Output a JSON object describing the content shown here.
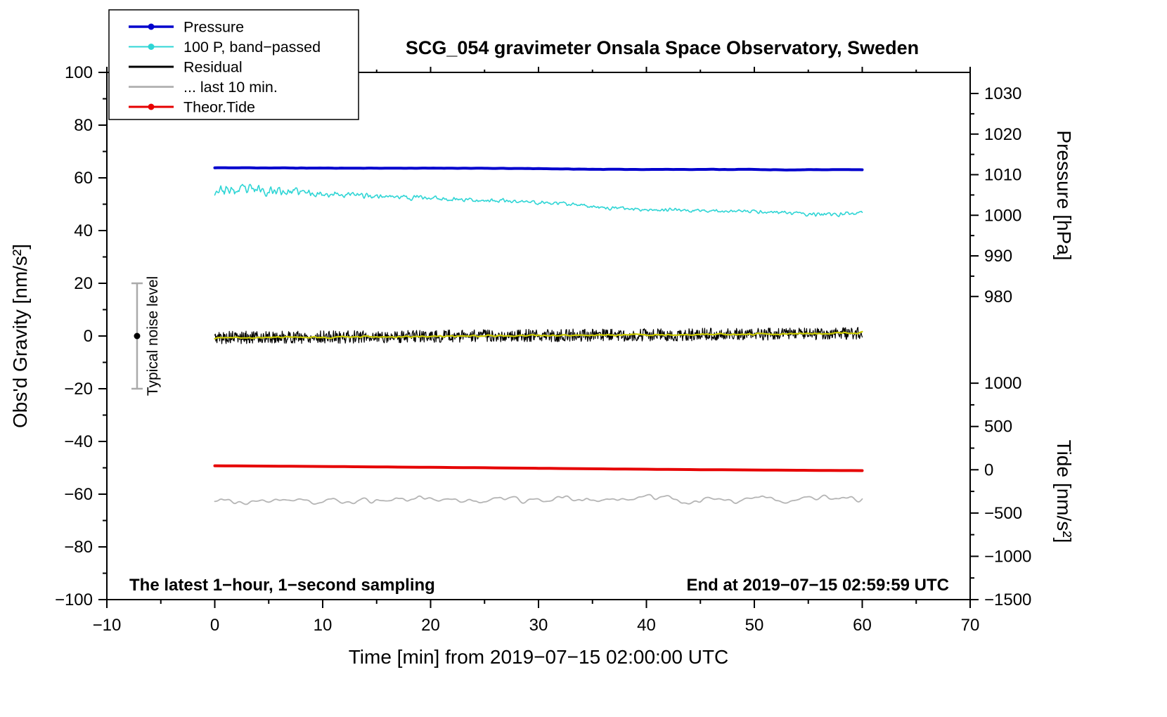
{
  "page": {
    "background": "#ffffff"
  },
  "chart_data": {
    "type": "line",
    "title": "SCG_054 gravimeter Onsala Space Observatory, Sweden",
    "xlabel": "Time [min] from 2019−07−15 02:00:00 UTC",
    "annotations": {
      "bottom_left": "The latest 1−hour, 1−second sampling",
      "bottom_right": "End at 2019−07−15 02:59:59 UTC",
      "noise_level": {
        "label": "Typical noise level",
        "x": -7.2,
        "center": 0,
        "half_range": 20
      }
    },
    "x_axis": {
      "min": -10,
      "max": 70,
      "major_step": 10,
      "minor_step": 5
    },
    "y_left": {
      "label": "Obs'd Gravity [nm/s²]",
      "min": -100,
      "max": 100,
      "major_step": 20,
      "minor_step": 10
    },
    "y_pressure": {
      "label": "Pressure [hPa]",
      "major_ticks": [
        1030,
        1020,
        1010,
        1000,
        990,
        980
      ],
      "minor_ticks": [
        1025,
        1015,
        1005,
        995,
        985
      ],
      "map": {
        "v1": 980,
        "g1": 15.0,
        "v2": 1030,
        "g2": 92.0
      }
    },
    "y_tide": {
      "label": "Tide [nm/s²]",
      "major_ticks": [
        1000,
        500,
        0,
        -500,
        -1000,
        -1500
      ],
      "minor_ticks": [
        750,
        250,
        -250,
        -750,
        -1250
      ],
      "map": {
        "v1": -1500,
        "g1": -100,
        "v2": 1000,
        "g2": -17.9
      }
    },
    "legend": [
      {
        "label": "Pressure",
        "color": "#0000cd",
        "width": 3.5,
        "marker": true
      },
      {
        "label": "100 P, band−passed",
        "color": "#2fd5d5",
        "width": 2,
        "marker": true
      },
      {
        "label": "Residual",
        "color": "#000000",
        "width": 3,
        "marker": false
      },
      {
        "label": "... last 10 min.",
        "color": "#b5b5b5",
        "width": 3,
        "marker": false
      },
      {
        "label": "Theor.Tide",
        "color": "#e60000",
        "width": 3,
        "marker": true
      }
    ],
    "series": [
      {
        "name": "last10min",
        "legend_label": "... last 10 min.",
        "axis": "gravity",
        "color": "#b5b5b5",
        "width": 1.8,
        "seed": 77,
        "step": 0.12,
        "smooth_passes": 5,
        "noise_amp": 3.0,
        "x": [
          0,
          60
        ],
        "y": [
          -62.3,
          -61.9
        ]
      },
      {
        "name": "pressure",
        "legend_label": "Pressure",
        "axis": "pressure",
        "color": "#0000cd",
        "width": 4,
        "seed": 11,
        "step": 0.25,
        "smooth_passes": 1,
        "noise_amp": 0.06,
        "x": [
          0,
          3,
          6,
          10,
          14,
          18,
          22,
          26,
          30,
          34,
          38,
          42,
          46,
          50,
          53,
          56,
          60
        ],
        "y": [
          1011.7,
          1011.7,
          1011.65,
          1011.62,
          1011.6,
          1011.6,
          1011.6,
          1011.55,
          1011.5,
          1011.35,
          1011.3,
          1011.3,
          1011.3,
          1011.3,
          1011.15,
          1011.25,
          1011.25
        ]
      },
      {
        "name": "bandpassed",
        "legend_label": "100 P, band−passed",
        "axis": "gravity",
        "color": "#2fd5d5",
        "width": 1.6,
        "seed": 23,
        "step": 0.08,
        "smooth_passes": 1,
        "noise_amp": [
          2.5,
          3.2,
          3.0,
          2.6,
          2.2,
          1.8,
          1.6,
          1.5,
          1.4,
          1.3,
          1.2,
          1.2,
          1.1,
          1.0,
          1.0,
          0.9,
          0.9,
          0.9,
          0.9,
          0.9,
          1.0,
          1.1,
          1.0
        ],
        "x": [
          0,
          2,
          4,
          6,
          8,
          10,
          13,
          16,
          19,
          22,
          25,
          28,
          31,
          34,
          37,
          40,
          43,
          46,
          49,
          52,
          55,
          57,
          60
        ],
        "y": [
          55.5,
          55.0,
          55.5,
          55.0,
          54.5,
          54.0,
          53.5,
          53.0,
          52.5,
          52.0,
          51.5,
          51.0,
          50.5,
          49.5,
          48.5,
          48.0,
          47.8,
          47.5,
          47.3,
          47.0,
          46.2,
          45.8,
          47.0
        ]
      },
      {
        "name": "residual",
        "legend_label": "Residual",
        "axis": "gravity",
        "color": "#000000",
        "width": 1.2,
        "seed": 5,
        "step": 0.05,
        "smooth_passes": 0,
        "noise_amp": 2.4,
        "x": [
          0,
          10,
          20,
          30,
          40,
          50,
          60
        ],
        "y": [
          -0.6,
          -0.4,
          -0.1,
          0.2,
          0.4,
          0.7,
          1.0
        ]
      },
      {
        "name": "residual-smoothed",
        "legend_label": "",
        "axis": "gravity",
        "color": "#cccc00",
        "width": 2.2,
        "seed": 9,
        "step": 0.1,
        "smooth_passes": 2,
        "noise_amp": 0.55,
        "x": [
          0,
          10,
          20,
          30,
          40,
          50,
          60
        ],
        "y": [
          -0.7,
          -0.5,
          -0.2,
          0.2,
          0.4,
          0.7,
          1.1
        ]
      },
      {
        "name": "theor-tide",
        "legend_label": "Theor.Tide",
        "axis": "tide",
        "color": "#e60000",
        "width": 4,
        "seed": 3,
        "step": 1,
        "smooth_passes": 0,
        "noise_amp": 0,
        "x": [
          0,
          5,
          10,
          15,
          20,
          25,
          30,
          35,
          40,
          45,
          50,
          55,
          60
        ],
        "y": [
          46,
          42,
          38,
          33,
          28,
          23,
          17,
          11,
          6,
          1,
          -3,
          -7,
          -10
        ]
      }
    ]
  }
}
